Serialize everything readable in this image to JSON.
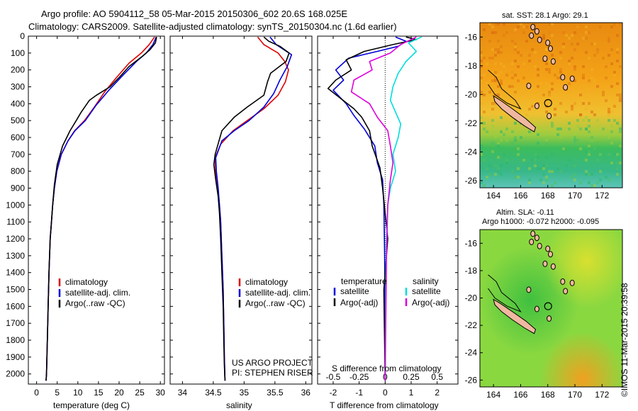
{
  "header": {
    "title_line1": "Argo profile: AO 5904112_58 05-Mar-2015 20150306_602 20.6S 168.025E",
    "title_line2": "Climatology: CARS2009. Satellite-adjusted climatology: synTS_20150304.nc (1.6d earlier)"
  },
  "chart_data": [
    {
      "type": "line",
      "panel": "temperature",
      "xlabel": "temperature (deg C)",
      "ylabel": "",
      "xlim": [
        -2,
        31
      ],
      "ylim": [
        2060,
        0
      ],
      "xticks": [
        0,
        5,
        10,
        15,
        20,
        25,
        30
      ],
      "yticks": [
        0,
        100,
        200,
        300,
        400,
        500,
        600,
        700,
        800,
        900,
        1000,
        1100,
        1200,
        1300,
        1400,
        1500,
        1600,
        1700,
        1800,
        1900,
        2000
      ],
      "legend": [
        "climatology",
        "satellite-adj. clim.",
        "Argo(..raw -QC)"
      ],
      "series": [
        {
          "name": "climatology",
          "color": "#dd0000",
          "x": [
            28.6,
            27.3,
            25.4,
            22.4,
            19.2,
            16.5,
            14.0,
            11.6,
            9.2,
            7.6,
            6.0,
            4.9,
            4.3,
            3.9,
            3.6,
            3.3,
            3.0,
            2.8,
            2.6,
            2.4,
            2.3
          ],
          "y": [
            5,
            50,
            100,
            160,
            250,
            330,
            420,
            500,
            560,
            620,
            700,
            800,
            900,
            1000,
            1100,
            1200,
            1400,
            1600,
            1800,
            2000,
            2040
          ]
        },
        {
          "name": "satellite-adj. clim.",
          "color": "#0000dd",
          "x": [
            29.0,
            28.2,
            26.6,
            24.2,
            21.0,
            17.5,
            14.4,
            11.8,
            9.3,
            7.6,
            6.0,
            4.9,
            4.3,
            3.9,
            3.6,
            3.3,
            3.0,
            2.8,
            2.6,
            2.4,
            2.3
          ],
          "y": [
            5,
            50,
            100,
            150,
            230,
            320,
            410,
            500,
            560,
            620,
            700,
            800,
            900,
            1000,
            1100,
            1200,
            1400,
            1600,
            1800,
            2000,
            2040
          ]
        },
        {
          "name": "Argo(..raw -QC)",
          "color": "#000000",
          "x": [
            29.1,
            28.8,
            27.5,
            25.6,
            22.4,
            20.2,
            17.8,
            14.5,
            12.8,
            10.8,
            9.6,
            8.1,
            6.3,
            5.0,
            4.3,
            3.9,
            3.6,
            3.3,
            3.0,
            2.8,
            2.6,
            2.4,
            2.3
          ],
          "y": [
            5,
            40,
            80,
            120,
            180,
            240,
            300,
            350,
            380,
            450,
            500,
            560,
            650,
            760,
            880,
            1000,
            1100,
            1200,
            1400,
            1600,
            1800,
            2000,
            2040
          ]
        }
      ]
    },
    {
      "type": "line",
      "panel": "salinity",
      "xlabel": "salinity",
      "xlim": [
        33.8,
        36.1
      ],
      "ylim": [
        2060,
        0
      ],
      "xticks": [
        34,
        34.5,
        35,
        35.5,
        36
      ],
      "legend": [
        "climatology",
        "satellite-adj. clim.",
        "Argo(..raw -QC)"
      ],
      "annotations": [
        "US ARGO PROJECT",
        "PI: STEPHEN RISER"
      ],
      "series": [
        {
          "name": "climatology",
          "color": "#dd0000",
          "x": [
            35.22,
            35.32,
            35.55,
            35.66,
            35.72,
            35.67,
            35.55,
            35.32,
            35.05,
            34.82,
            34.62,
            34.53,
            34.54,
            34.57,
            34.6,
            34.62,
            34.64,
            34.66,
            34.67,
            34.68,
            34.69
          ],
          "y": [
            5,
            50,
            100,
            150,
            200,
            270,
            350,
            430,
            500,
            560,
            640,
            720,
            800,
            900,
            1000,
            1100,
            1300,
            1500,
            1700,
            1900,
            2040
          ]
        },
        {
          "name": "satellite-adj. clim.",
          "color": "#0000dd",
          "x": [
            35.42,
            35.52,
            35.77,
            35.7,
            35.58,
            35.48,
            35.32,
            35.08,
            34.84,
            34.64,
            34.54,
            34.55,
            34.58,
            34.6,
            34.62,
            34.64,
            34.66,
            34.67,
            34.68,
            34.69
          ],
          "y": [
            5,
            50,
            110,
            180,
            260,
            340,
            420,
            500,
            560,
            620,
            720,
            800,
            900,
            1000,
            1100,
            1300,
            1500,
            1700,
            1900,
            2040
          ]
        },
        {
          "name": "Argo(..raw -QC)",
          "color": "#000000",
          "x": [
            35.32,
            35.4,
            35.58,
            35.73,
            35.68,
            35.43,
            35.38,
            35.32,
            35.05,
            34.84,
            34.64,
            34.53,
            34.51,
            34.54,
            34.58,
            34.6,
            34.62,
            34.64,
            34.66,
            34.67,
            34.68,
            34.69
          ],
          "y": [
            5,
            30,
            60,
            100,
            150,
            220,
            270,
            350,
            420,
            480,
            560,
            700,
            760,
            850,
            950,
            1050,
            1200,
            1400,
            1600,
            1800,
            1950,
            2040
          ]
        }
      ]
    },
    {
      "type": "line",
      "panel": "difference",
      "xlabel": "T difference from climatology",
      "xlabel2": "S difference from climatology",
      "xlim": [
        -2.6,
        2.8
      ],
      "ylim": [
        2060,
        0
      ],
      "xticks": [
        -2,
        -1,
        0,
        1,
        2
      ],
      "xticks_salinity": [
        -0.5,
        -0.25,
        0,
        0.25,
        0.5
      ],
      "legend_headings": [
        "temperature",
        "salinity"
      ],
      "legend": [
        "satellite",
        "Argo(-adj)",
        "satellite",
        "Argo(-adj)"
      ],
      "series": [
        {
          "name": "temperature satellite",
          "color": "#0000dd",
          "x": [
            0.4,
            0.8,
            0.5,
            -0.3,
            -1.4,
            -1.9,
            -1.6,
            -2.0,
            -1.5,
            -1.2,
            -0.8,
            -0.4,
            -0.3,
            -0.1,
            -0.05,
            -0.02,
            -0.01,
            0.0
          ],
          "y": [
            5,
            30,
            60,
            90,
            130,
            200,
            260,
            320,
            400,
            470,
            550,
            650,
            750,
            850,
            1000,
            1300,
            1600,
            2040
          ]
        },
        {
          "name": "temperature Argo(-adj)",
          "color": "#000000",
          "x": [
            0.8,
            1.2,
            0.3,
            -0.8,
            -1.5,
            -1.3,
            -1.9,
            -2.2,
            -1.7,
            -1.2,
            -0.9,
            -0.6,
            -0.5,
            -0.2,
            -0.1,
            0.1,
            -0.05,
            0.0
          ],
          "y": [
            5,
            20,
            50,
            90,
            140,
            200,
            260,
            310,
            370,
            430,
            480,
            560,
            650,
            780,
            900,
            1200,
            1500,
            2040
          ]
        },
        {
          "name": "salinity satellite",
          "color": "#00dddd",
          "x": [
            1.4,
            0.9,
            1.2,
            0.8,
            0.5,
            0.3,
            0.2,
            0.4,
            0.6,
            0.5,
            0.3,
            0.4,
            0.2,
            0.1,
            0.05,
            0.02,
            0.0
          ],
          "y": [
            5,
            40,
            90,
            150,
            220,
            300,
            380,
            450,
            520,
            600,
            700,
            800,
            900,
            1000,
            1200,
            1500,
            2040
          ]
        },
        {
          "name": "salinity Argo(-adj)",
          "color": "#dd00dd",
          "x": [
            1.2,
            0.6,
            0.2,
            -0.6,
            -0.5,
            -1.2,
            -1.3,
            -0.6,
            -0.3,
            0.1,
            0.2,
            0.3,
            0.2,
            0.1,
            0.05,
            0.0
          ],
          "y": [
            5,
            50,
            100,
            150,
            200,
            260,
            330,
            400,
            480,
            560,
            650,
            750,
            850,
            1000,
            1300,
            2040
          ]
        }
      ]
    },
    {
      "type": "heatmap",
      "panel": "sst_map",
      "title": "sat. SST: 28.1  Argo: 29.1",
      "xlim": [
        163,
        173.5
      ],
      "ylim": [
        -26.5,
        -15
      ],
      "xticks": [
        164,
        166,
        168,
        170,
        172
      ],
      "yticks": [
        -16,
        -18,
        -20,
        -22,
        -24,
        -26
      ],
      "marker": {
        "lon": 168.025,
        "lat": -20.6
      }
    },
    {
      "type": "heatmap",
      "panel": "sla_map",
      "title_line1": "Altim. SLA: -0.11",
      "title_line2": "Argo h1000: -0.072  h2000: -0.095",
      "xlim": [
        163,
        173.5
      ],
      "ylim": [
        -26.5,
        -15
      ],
      "xticks": [
        164,
        166,
        168,
        170,
        172
      ],
      "yticks": [
        -16,
        -18,
        -20,
        -22,
        -24,
        -26
      ],
      "marker": {
        "lon": 168.025,
        "lat": -20.6
      }
    }
  ],
  "side_label": "©IMOS 11-Mar-2015 20:39:58"
}
